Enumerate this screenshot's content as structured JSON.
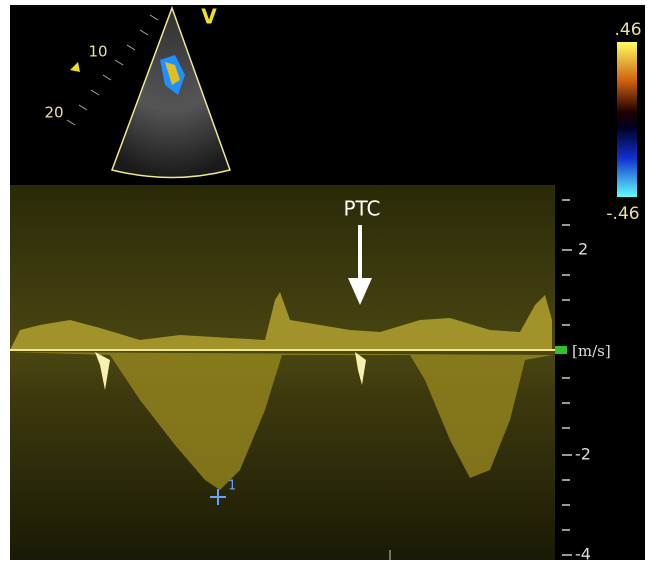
{
  "sector": {
    "orientation_mark": "V",
    "depth_labels": [
      "10",
      "20"
    ]
  },
  "color_scale": {
    "top": ".46",
    "bottom": "-.46"
  },
  "spectrum": {
    "annotation": "PTC",
    "velocity_labels": [
      "2",
      "-2",
      "-4"
    ],
    "unit": "[m/s]",
    "cursor_label": "1"
  }
}
